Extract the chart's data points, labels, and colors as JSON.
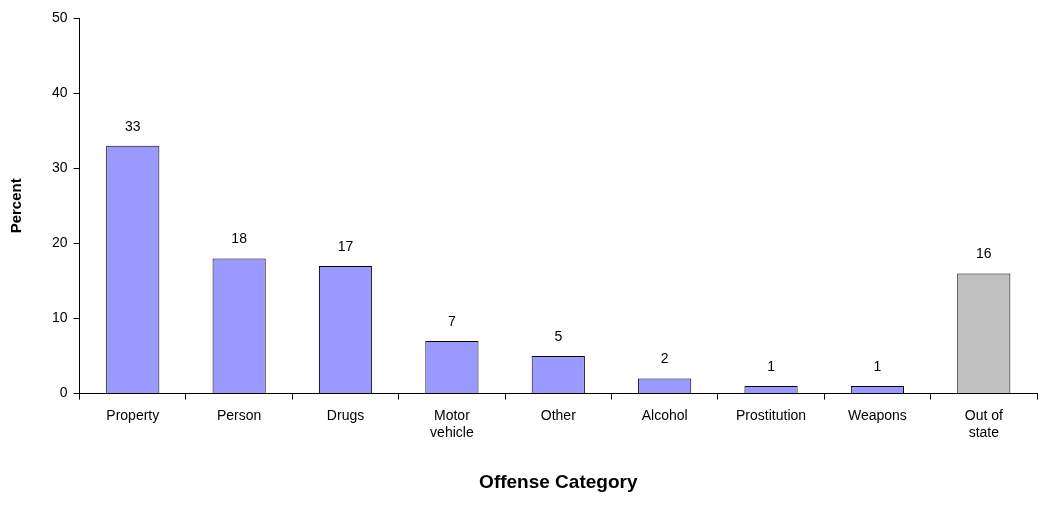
{
  "chart_data": {
    "type": "bar",
    "xlabel": "Offense Category",
    "ylabel": "Percent",
    "categories": [
      "Property",
      "Person",
      "Drugs",
      "Motor vehicle",
      "Other",
      "Alcohol",
      "Prostitution",
      "Weapons",
      "Out of state"
    ],
    "values": [
      33,
      18,
      17,
      7,
      5,
      2,
      1,
      1,
      16
    ],
    "colors": [
      "#9999ff",
      "#9999ff",
      "#9999ff",
      "#9999ff",
      "#9999ff",
      "#9999ff",
      "#9999ff",
      "#9999ff",
      "#c0c0c0"
    ],
    "ylim": [
      0,
      50
    ],
    "yticks": [
      0,
      10,
      20,
      30,
      40,
      50
    ],
    "grid": false,
    "legend": false,
    "data_labels": true
  }
}
